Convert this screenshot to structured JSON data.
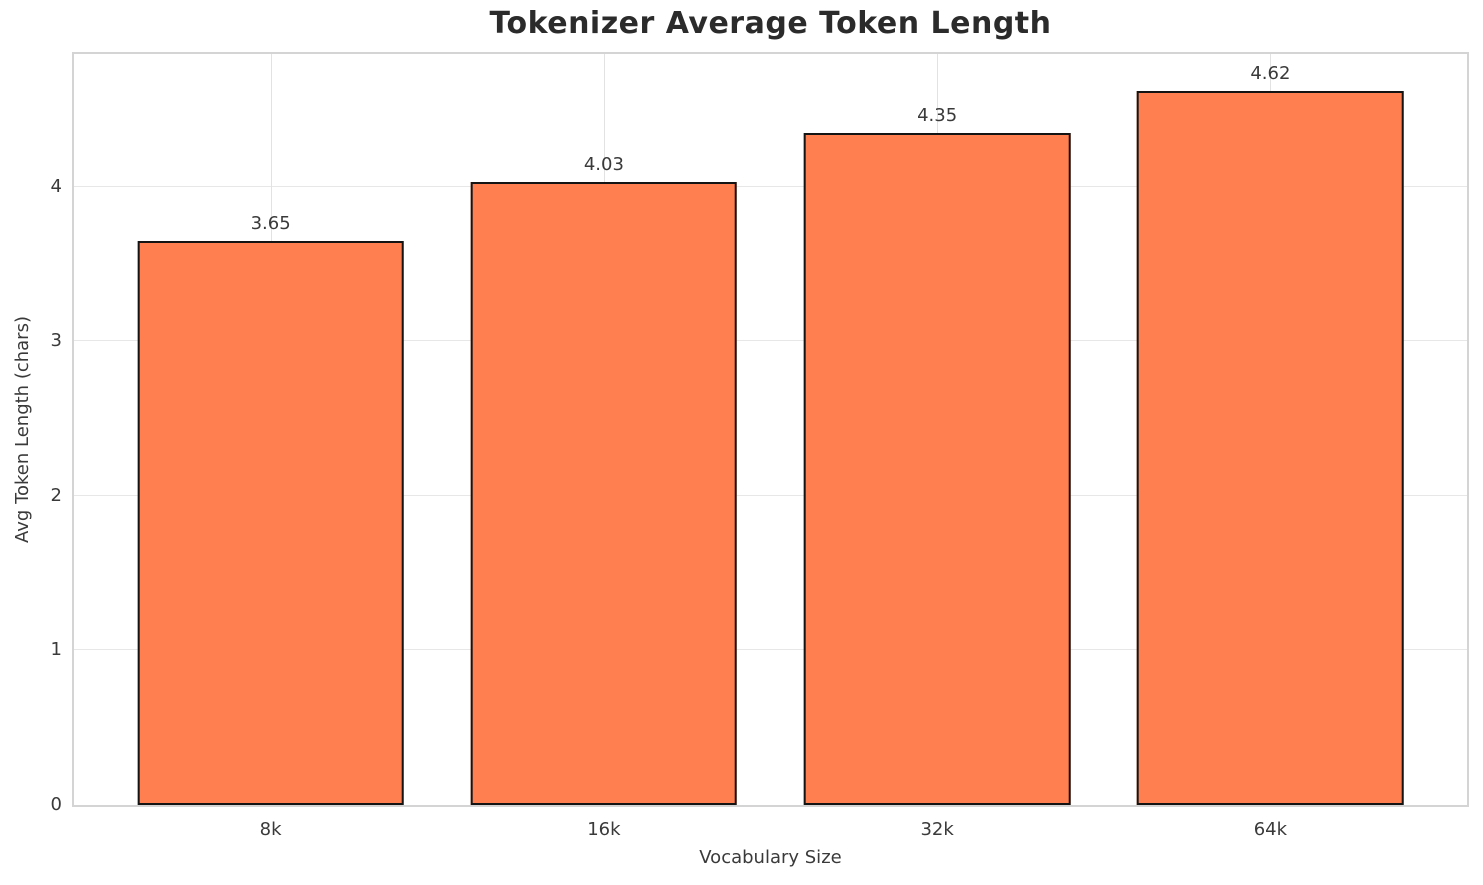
{
  "chart_data": {
    "type": "bar",
    "title": "Tokenizer Average Token Length",
    "xlabel": "Vocabulary Size",
    "ylabel": "Avg Token Length (chars)",
    "categories": [
      "8k",
      "16k",
      "32k",
      "64k"
    ],
    "values": [
      3.65,
      4.03,
      4.35,
      4.62
    ],
    "value_labels": [
      "3.65",
      "4.03",
      "4.35",
      "4.62"
    ],
    "yticks": [
      0,
      1,
      2,
      3,
      4
    ],
    "ylim": [
      0,
      4.86
    ],
    "grid": true,
    "legend": "none",
    "bar_color": "#ff7f50",
    "bar_edge_color": "#141414",
    "grid_color": "#e7e7e7",
    "spine_color": "#d4d4d4",
    "text_color": "#3a3a3a",
    "title_color": "#2b2b2b",
    "x_offset_units": 0.59,
    "x_span_units": 4.18,
    "bar_width_units": 0.8
  }
}
